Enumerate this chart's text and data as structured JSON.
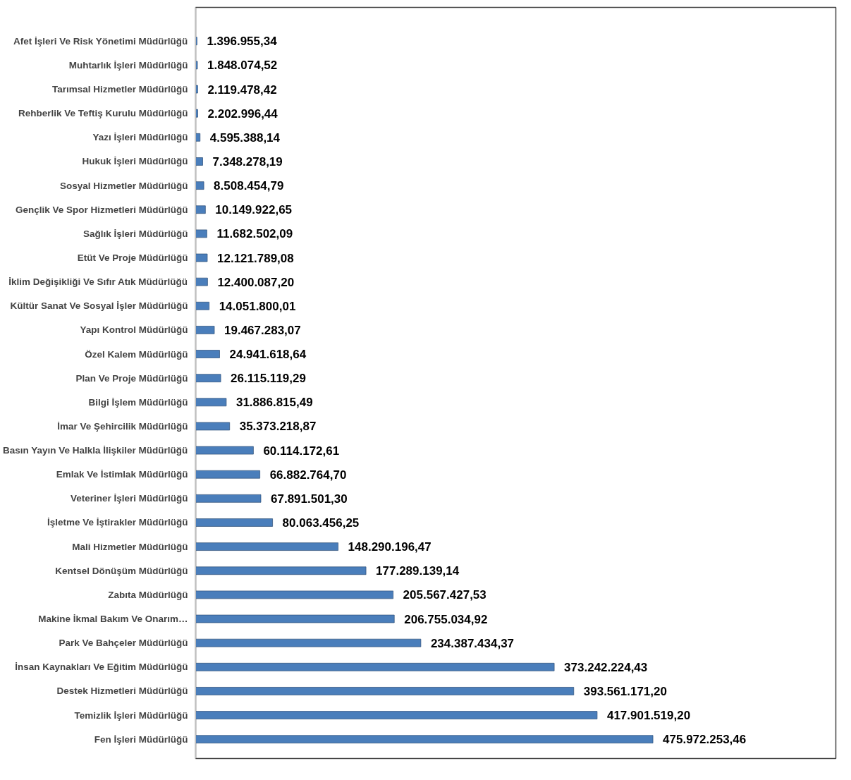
{
  "chart_data": {
    "type": "bar",
    "orientation": "horizontal",
    "color": "#4a7ebb",
    "categories": [
      "Afet İşleri Ve Risk Yönetimi Müdürlüğü",
      "Muhtarlık İşleri Müdürlüğü",
      "Tarımsal Hizmetler Müdürlüğü",
      "Rehberlik Ve Teftiş Kurulu Müdürlüğü",
      "Yazı İşleri Müdürlüğü",
      "Hukuk İşleri Müdürlüğü",
      "Sosyal Hizmetler Müdürlüğü",
      "Gençlik Ve Spor Hizmetleri Müdürlüğü",
      "Sağlık İşleri Müdürlüğü",
      "Etüt Ve Proje Müdürlüğü",
      "İklim Değişikliği Ve Sıfır Atık Müdürlüğü",
      "Kültür Sanat Ve Sosyal İşler Müdürlüğü",
      "Yapı Kontrol Müdürlüğü",
      "Özel Kalem Müdürlüğü",
      "Plan Ve Proje Müdürlüğü",
      "Bilgi İşlem Müdürlüğü",
      "İmar Ve Şehircilik Müdürlüğü",
      "Basın Yayın Ve Halkla İlişkiler Müdürlüğü",
      "Emlak Ve İstimlak Müdürlüğü",
      "Veteriner İşleri Müdürlüğü",
      "İşletme Ve İştirakler Müdürlüğü",
      "Mali Hizmetler Müdürlüğü",
      "Kentsel Dönüşüm Müdürlüğü",
      "Zabıta Müdürlüğü",
      "Makine İkmal Bakım Ve Onarım…",
      "Park Ve Bahçeler Müdürlüğü",
      "İnsan Kaynakları Ve Eğitim Müdürlüğü",
      "Destek Hizmetleri Müdürlüğü",
      "Temizlik İşleri Müdürlüğü",
      "Fen İşleri Müdürlüğü"
    ],
    "values": [
      1396955.34,
      1848074.52,
      2119478.42,
      2202996.44,
      4595388.14,
      7348278.19,
      8508454.79,
      10149922.65,
      11682502.09,
      12121789.08,
      12400087.2,
      14051800.01,
      19467283.07,
      24941618.64,
      26115119.29,
      31886815.49,
      35373218.87,
      60114172.61,
      66882764.7,
      67891501.3,
      80063456.25,
      148290196.47,
      177289139.14,
      205567427.53,
      206755034.92,
      234387434.37,
      373242224.43,
      393561171.2,
      417901519.2,
      475972253.46
    ],
    "value_labels": [
      "1.396.955,34",
      "1.848.074,52",
      "2.119.478,42",
      "2.202.996,44",
      "4.595.388,14",
      "7.348.278,19",
      "8.508.454,79",
      "10.149.922,65",
      "11.682.502,09",
      "12.121.789,08",
      "12.400.087,20",
      "14.051.800,01",
      "19.467.283,07",
      "24.941.618,64",
      "26.115.119,29",
      "31.886.815,49",
      "35.373.218,87",
      "60.114.172,61",
      "66.882.764,70",
      "67.891.501,30",
      "80.063.456,25",
      "148.290.196,47",
      "177.289.139,14",
      "205.567.427,53",
      "206.755.034,92",
      "234.387.434,37",
      "373.242.224,43",
      "393.561.171,20",
      "417.901.519,20",
      "475.972.253,46"
    ]
  }
}
